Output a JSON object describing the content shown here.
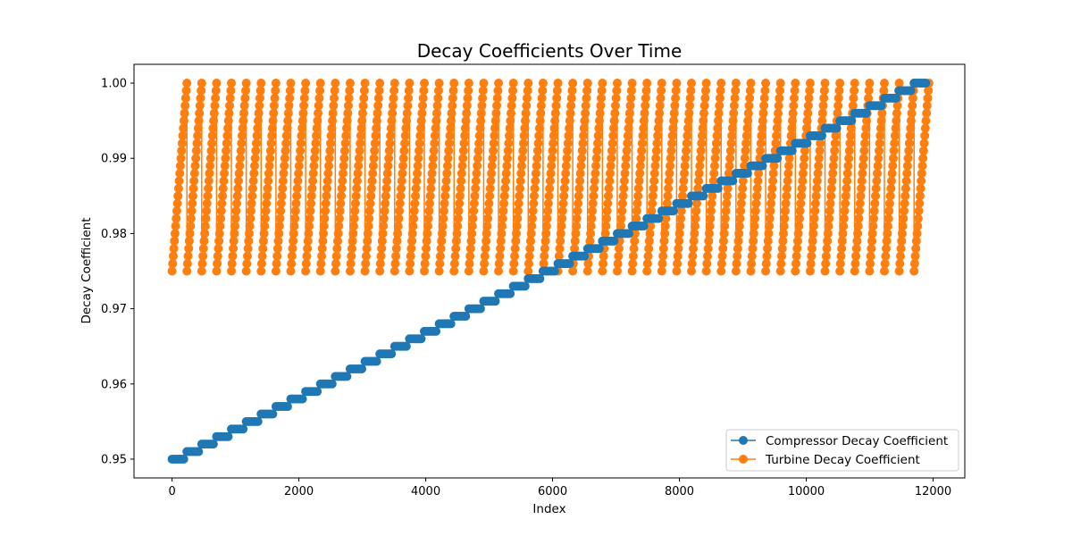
{
  "chart_data": {
    "type": "line",
    "title": "Decay Coefficients Over Time",
    "xlabel": "Index",
    "ylabel": "Decay Coefficient",
    "xlim": [
      -600,
      12500
    ],
    "ylim": [
      0.9475,
      1.0025
    ],
    "xticks": [
      0,
      2000,
      4000,
      6000,
      8000,
      10000,
      12000
    ],
    "xtick_labels": [
      "0",
      "2000",
      "4000",
      "6000",
      "8000",
      "10000",
      "12000"
    ],
    "yticks": [
      0.95,
      0.96,
      0.97,
      0.98,
      0.99,
      1.0
    ],
    "ytick_labels": [
      "0.95",
      "0.96",
      "0.97",
      "0.98",
      "0.99",
      "1.00"
    ],
    "grid": false,
    "legend_position": "lower-right",
    "series": [
      {
        "name": "Compressor Decay Coefficient",
        "color": "#1f77b4",
        "marker": "circle",
        "pattern": "staircase",
        "x_start": 0,
        "x_end": 11934,
        "step_length": 234,
        "y_start": 0.95,
        "y_end": 1.0,
        "y_step": 0.001
      },
      {
        "name": "Turbine Decay Coefficient",
        "color": "#ff7f0e",
        "marker": "circle",
        "pattern": "sawtooth",
        "x_start": 0,
        "x_end": 11934,
        "period": 234,
        "y_min": 0.975,
        "y_max": 1.0,
        "y_step": 0.001
      }
    ]
  }
}
